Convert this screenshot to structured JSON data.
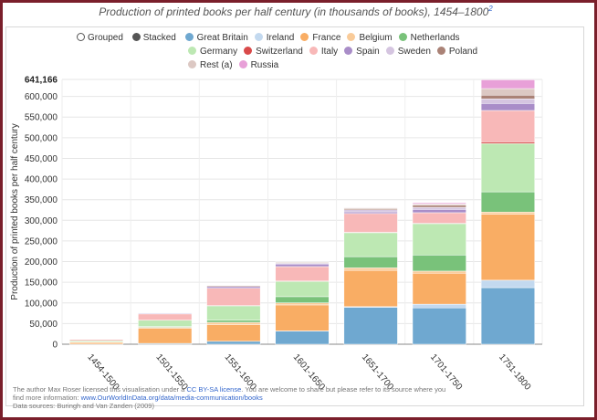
{
  "title": "Production of printed books per half century (in thousands of books), 1454–1800",
  "title_footnote": "2",
  "mode_options": [
    {
      "label": "Grouped",
      "selected": false
    },
    {
      "label": "Stacked",
      "selected": true
    }
  ],
  "source": {
    "line1_pre": "The author Max Roser licensed this visualisation under a ",
    "license_link": "CC BY-SA license",
    "line1_post": ". You are welcome to share but please refer to its source where you",
    "line2_pre": "find more information: ",
    "info_link": "www.OurWorldInData.org/data/media-communication/books",
    "line3": "Data sources: Buringh and Van Zanden (2009)"
  },
  "chart_data": {
    "type": "bar",
    "stacked": true,
    "ylabel": "Production of printed books per half century",
    "xlabel": "",
    "ylim": [
      0,
      641166
    ],
    "y_max_label": "641,166",
    "y_ticks": [
      0,
      50000,
      100000,
      150000,
      200000,
      250000,
      300000,
      350000,
      400000,
      450000,
      500000,
      550000,
      600000
    ],
    "y_tick_labels": [
      "0",
      "50,000",
      "100,000",
      "150,000",
      "200,000",
      "250,000",
      "300,000",
      "350,000",
      "400,000",
      "450,000",
      "500,000",
      "550,000",
      "600,000"
    ],
    "grid": true,
    "legend_position": "top",
    "categories": [
      "1454-1500",
      "1501-1550",
      "1551-1600",
      "1601-1650",
      "1651-1700",
      "1701-1750",
      "1751-1800"
    ],
    "series": [
      {
        "name": "Great Britain",
        "color": "#6fa8d0",
        "values": [
          300,
          2000,
          7000,
          32000,
          89000,
          88000,
          137000
        ]
      },
      {
        "name": "Ireland",
        "color": "#c3d9ef",
        "values": [
          0,
          0,
          0,
          200,
          2000,
          9000,
          18000
        ]
      },
      {
        "name": "France",
        "color": "#f9ad64",
        "values": [
          4000,
          37000,
          40000,
          63000,
          88000,
          75000,
          160000
        ]
      },
      {
        "name": "Belgium",
        "color": "#f9cb99",
        "values": [
          400,
          2000,
          6000,
          5000,
          6000,
          5000,
          5000
        ]
      },
      {
        "name": "Netherlands",
        "color": "#79c27a",
        "values": [
          800,
          2000,
          5000,
          15000,
          27000,
          39000,
          49000
        ]
      },
      {
        "name": "Germany",
        "color": "#bde8b3",
        "values": [
          3000,
          15000,
          35000,
          37000,
          58000,
          76000,
          117000
        ]
      },
      {
        "name": "Switzerland",
        "color": "#d94a4a",
        "values": [
          100,
          300,
          600,
          800,
          1500,
          1500,
          4000
        ]
      },
      {
        "name": "Italy",
        "color": "#f8b8b8",
        "values": [
          3000,
          15000,
          42000,
          35000,
          45000,
          25000,
          76000
        ]
      },
      {
        "name": "Spain",
        "color": "#a98dc8",
        "values": [
          500,
          2000,
          4000,
          6000,
          4000,
          8000,
          17000
        ]
      },
      {
        "name": "Sweden",
        "color": "#d5c5e0",
        "values": [
          50,
          200,
          500,
          2000,
          5000,
          5000,
          11000
        ]
      },
      {
        "name": "Poland",
        "color": "#aa8276",
        "values": [
          100,
          500,
          2000,
          2000,
          3000,
          5000,
          9000
        ]
      },
      {
        "name": "Rest (a)",
        "color": "#dcc8c3",
        "values": [
          50,
          200,
          500,
          1000,
          2000,
          3000,
          16000
        ]
      },
      {
        "name": "Russia",
        "color": "#e8a0d8",
        "values": [
          0,
          0,
          0,
          200,
          500,
          3000,
          21166
        ]
      }
    ]
  }
}
